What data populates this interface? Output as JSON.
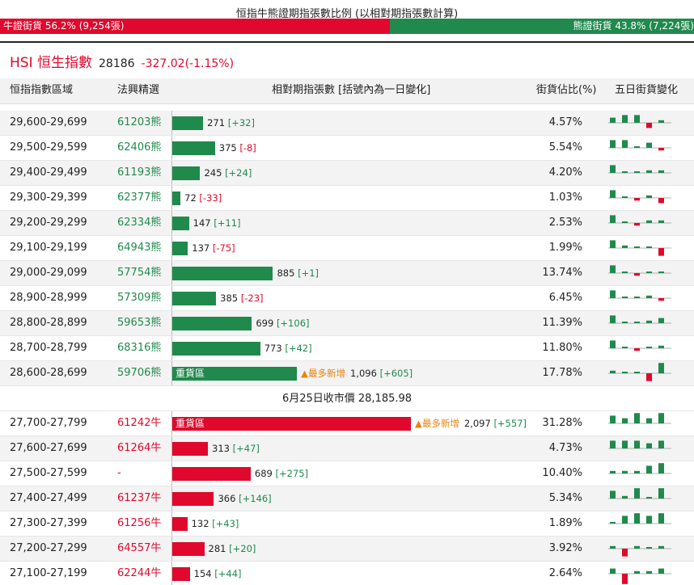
{
  "ratio": {
    "title": "恒指牛熊證期指張數比例 (以相對期指張數計算)",
    "bull_label": "牛證街貨 56.2% (9,254張)",
    "bear_label": "熊證街貨 43.8% (7,224張)",
    "bull_pct": 56.2,
    "bear_pct": 43.8
  },
  "index": {
    "name": "HSI 恒生指數",
    "price": "28186",
    "change": "-327.02(-1.15%)"
  },
  "headers": {
    "range": "恒指指數區域",
    "code": "法興精選",
    "qty": "相對期指張數 [括號內為一日變化]",
    "pct": "街貨佔比(%)",
    "trend": "五日街貨變化"
  },
  "colors": {
    "bear": "#1f8a4c",
    "bull": "#e0082c",
    "hot": "#e8820d"
  },
  "bear_rows": [
    {
      "range": "29,600-29,699",
      "code": "61203熊",
      "qty": 271,
      "qty_text": "271",
      "delta": "[+32]",
      "delta_sign": "pos",
      "pct": "4.57%",
      "tag": "",
      "hot": "",
      "trend": [
        2,
        3,
        3,
        -2,
        1
      ]
    },
    {
      "range": "29,500-29,599",
      "code": "62406熊",
      "qty": 375,
      "qty_text": "375",
      "delta": "[-8]",
      "delta_sign": "neg",
      "pct": "5.54%",
      "tag": "",
      "hot": "",
      "trend": [
        3,
        3,
        0,
        2,
        -1
      ]
    },
    {
      "range": "29,400-29,499",
      "code": "61193熊",
      "qty": 245,
      "qty_text": "245",
      "delta": "[+24]",
      "delta_sign": "pos",
      "pct": "4.20%",
      "tag": "",
      "hot": "",
      "trend": [
        3,
        0,
        0,
        1,
        1
      ]
    },
    {
      "range": "29,300-29,399",
      "code": "62377熊",
      "qty": 72,
      "qty_text": "72",
      "delta": "[-33]",
      "delta_sign": "neg",
      "pct": "1.03%",
      "tag": "",
      "hot": "",
      "trend": [
        3,
        0,
        -1,
        1,
        -2
      ]
    },
    {
      "range": "29,200-29,299",
      "code": "62334熊",
      "qty": 147,
      "qty_text": "147",
      "delta": "[+11]",
      "delta_sign": "pos",
      "pct": "2.53%",
      "tag": "",
      "hot": "",
      "trend": [
        3,
        0,
        -1,
        1,
        1
      ]
    },
    {
      "range": "29,100-29,199",
      "code": "64943熊",
      "qty": 137,
      "qty_text": "137",
      "delta": "[-75]",
      "delta_sign": "neg",
      "pct": "1.99%",
      "tag": "",
      "hot": "",
      "trend": [
        3,
        1,
        0,
        0,
        -3
      ]
    },
    {
      "range": "29,000-29,099",
      "code": "57754熊",
      "qty": 885,
      "qty_text": "885",
      "delta": "[+1]",
      "delta_sign": "pos",
      "pct": "13.74%",
      "tag": "",
      "hot": "",
      "trend": [
        3,
        0,
        -1,
        0,
        0
      ]
    },
    {
      "range": "28,900-28,999",
      "code": "57309熊",
      "qty": 385,
      "qty_text": "385",
      "delta": "[-23]",
      "delta_sign": "neg",
      "pct": "6.45%",
      "tag": "",
      "hot": "",
      "trend": [
        3,
        0,
        0,
        1,
        -1
      ]
    },
    {
      "range": "28,800-28,899",
      "code": "59653熊",
      "qty": 699,
      "qty_text": "699",
      "delta": "[+106]",
      "delta_sign": "pos",
      "pct": "11.39%",
      "tag": "",
      "hot": "",
      "trend": [
        3,
        0,
        0,
        1,
        2
      ]
    },
    {
      "range": "28,700-28,799",
      "code": "68316熊",
      "qty": 773,
      "qty_text": "773",
      "delta": "[+42]",
      "delta_sign": "pos",
      "pct": "11.80%",
      "tag": "",
      "hot": "",
      "trend": [
        3,
        0,
        -1,
        0,
        1
      ]
    },
    {
      "range": "28,600-28,699",
      "code": "59706熊",
      "qty": 1096,
      "qty_text": "1,096",
      "delta": "[+605]",
      "delta_sign": "pos",
      "pct": "17.78%",
      "tag": "重貨區",
      "hot": "▲最多新增",
      "trend": [
        1,
        0,
        0,
        -3,
        4
      ]
    }
  ],
  "close_text": "6月25日收市價 28,185.98",
  "bull_rows": [
    {
      "range": "27,700-27,799",
      "code": "61242牛",
      "qty": 2097,
      "qty_text": "2,097",
      "delta": "[+557]",
      "delta_sign": "pos",
      "pct": "31.28%",
      "tag": "重貨區",
      "hot": "▲最多新增",
      "trend": [
        3,
        2,
        4,
        2,
        4
      ]
    },
    {
      "range": "27,600-27,699",
      "code": "61264牛",
      "qty": 313,
      "qty_text": "313",
      "delta": "[+47]",
      "delta_sign": "pos",
      "pct": "4.73%",
      "tag": "",
      "hot": "",
      "trend": [
        3,
        3,
        3,
        2,
        3
      ]
    },
    {
      "range": "27,500-27,599",
      "code": "-",
      "qty": 689,
      "qty_text": "689",
      "delta": "[+275]",
      "delta_sign": "pos",
      "pct": "10.40%",
      "tag": "",
      "hot": "",
      "trend": [
        1,
        1,
        1,
        3,
        4
      ]
    },
    {
      "range": "27,400-27,499",
      "code": "61237牛",
      "qty": 366,
      "qty_text": "366",
      "delta": "[+146]",
      "delta_sign": "pos",
      "pct": "5.34%",
      "tag": "",
      "hot": "",
      "trend": [
        3,
        1,
        4,
        0,
        4
      ]
    },
    {
      "range": "27,300-27,399",
      "code": "61256牛",
      "qty": 132,
      "qty_text": "132",
      "delta": "[+43]",
      "delta_sign": "pos",
      "pct": "1.89%",
      "tag": "",
      "hot": "",
      "trend": [
        0,
        3,
        4,
        3,
        4
      ]
    },
    {
      "range": "27,200-27,299",
      "code": "64557牛",
      "qty": 281,
      "qty_text": "281",
      "delta": "[+20]",
      "delta_sign": "pos",
      "pct": "3.92%",
      "tag": "",
      "hot": "",
      "trend": [
        1,
        -3,
        1,
        0,
        1
      ]
    },
    {
      "range": "27,100-27,199",
      "code": "62244牛",
      "qty": 154,
      "qty_text": "154",
      "delta": "[+44]",
      "delta_sign": "pos",
      "pct": "2.64%",
      "tag": "",
      "hot": "",
      "trend": [
        2,
        -4,
        1,
        1,
        2
      ]
    }
  ]
}
